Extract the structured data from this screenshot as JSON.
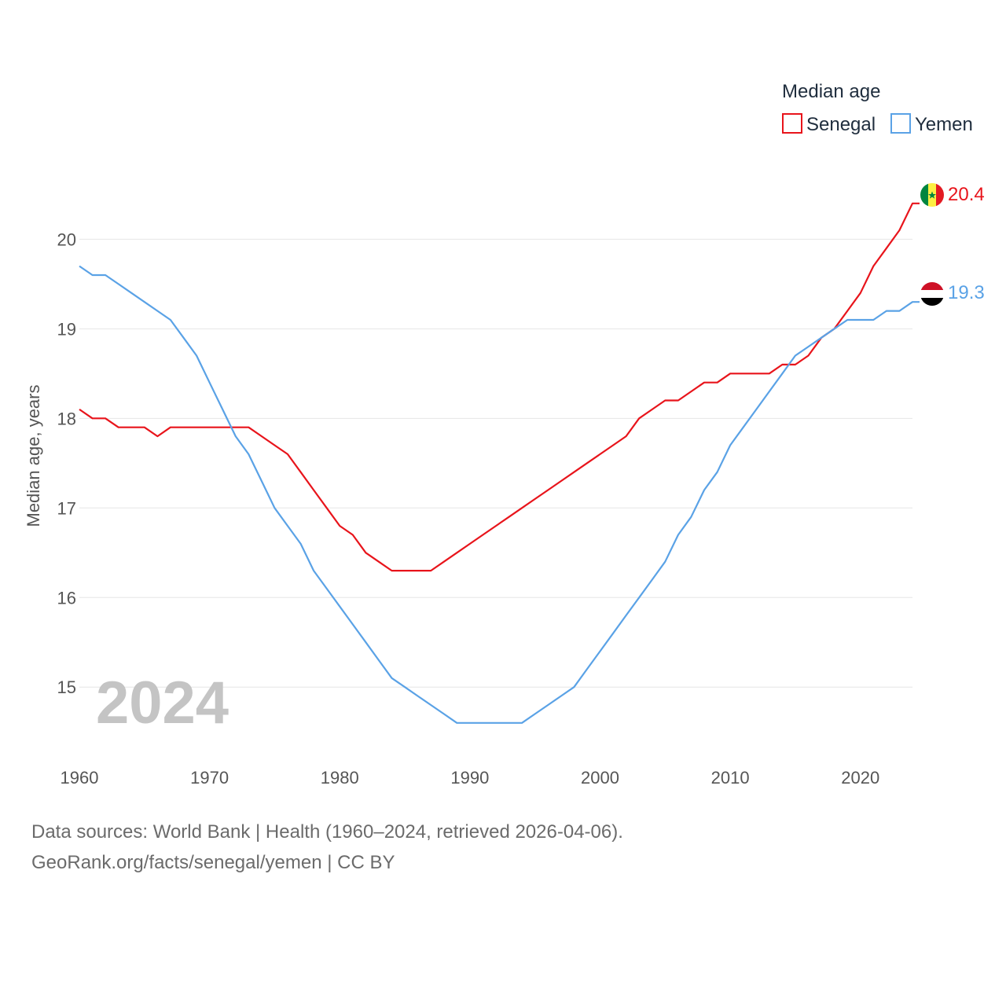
{
  "chart_data": {
    "type": "line",
    "legend_title": "Median age",
    "ylabel": "Median age, years",
    "xlim": [
      1960,
      2024
    ],
    "ylim": [
      14.3,
      20.6
    ],
    "x_ticks": [
      1960,
      1970,
      1980,
      1990,
      2000,
      2010,
      2020
    ],
    "y_ticks": [
      15,
      16,
      17,
      18,
      19,
      20
    ],
    "current_year_label": "2024",
    "x": [
      1960,
      1961,
      1962,
      1963,
      1964,
      1965,
      1966,
      1967,
      1968,
      1969,
      1970,
      1971,
      1972,
      1973,
      1974,
      1975,
      1976,
      1977,
      1978,
      1979,
      1980,
      1981,
      1982,
      1983,
      1984,
      1985,
      1986,
      1987,
      1988,
      1989,
      1990,
      1991,
      1992,
      1993,
      1994,
      1995,
      1996,
      1997,
      1998,
      1999,
      2000,
      2001,
      2002,
      2003,
      2004,
      2005,
      2006,
      2007,
      2008,
      2009,
      2010,
      2011,
      2012,
      2013,
      2014,
      2015,
      2016,
      2017,
      2018,
      2019,
      2020,
      2021,
      2022,
      2023,
      2024
    ],
    "series": [
      {
        "name": "Senegal",
        "color": "#e8141b",
        "end_label": "20.4",
        "flag": "senegal-flag",
        "values": [
          18.1,
          18.0,
          18.0,
          17.9,
          17.9,
          17.9,
          17.8,
          17.9,
          17.9,
          17.9,
          17.9,
          17.9,
          17.9,
          17.9,
          17.8,
          17.7,
          17.6,
          17.4,
          17.2,
          17.0,
          16.8,
          16.7,
          16.5,
          16.4,
          16.3,
          16.3,
          16.3,
          16.3,
          16.4,
          16.5,
          16.6,
          16.7,
          16.8,
          16.9,
          17.0,
          17.1,
          17.2,
          17.3,
          17.4,
          17.5,
          17.6,
          17.7,
          17.8,
          18.0,
          18.1,
          18.2,
          18.2,
          18.3,
          18.4,
          18.4,
          18.5,
          18.5,
          18.5,
          18.5,
          18.6,
          18.6,
          18.7,
          18.9,
          19.0,
          19.2,
          19.4,
          19.7,
          19.9,
          20.1,
          20.4
        ]
      },
      {
        "name": "Yemen",
        "color": "#5aa2e6",
        "end_label": "19.3",
        "flag": "yemen-flag",
        "values": [
          19.7,
          19.6,
          19.6,
          19.5,
          19.4,
          19.3,
          19.2,
          19.1,
          18.9,
          18.7,
          18.4,
          18.1,
          17.8,
          17.6,
          17.3,
          17.0,
          16.8,
          16.6,
          16.3,
          16.1,
          15.9,
          15.7,
          15.5,
          15.3,
          15.1,
          15.0,
          14.9,
          14.8,
          14.7,
          14.6,
          14.6,
          14.6,
          14.6,
          14.6,
          14.6,
          14.7,
          14.8,
          14.9,
          15.0,
          15.2,
          15.4,
          15.6,
          15.8,
          16.0,
          16.2,
          16.4,
          16.7,
          16.9,
          17.2,
          17.4,
          17.7,
          17.9,
          18.1,
          18.3,
          18.5,
          18.7,
          18.8,
          18.9,
          19.0,
          19.1,
          19.1,
          19.1,
          19.2,
          19.2,
          19.3
        ]
      }
    ]
  },
  "footer": {
    "source": "Data sources: World Bank | Health (1960–2024, retrieved 2026-04-06).",
    "credit": "GeoRank.org/facts/senegal/yemen | CC BY"
  }
}
